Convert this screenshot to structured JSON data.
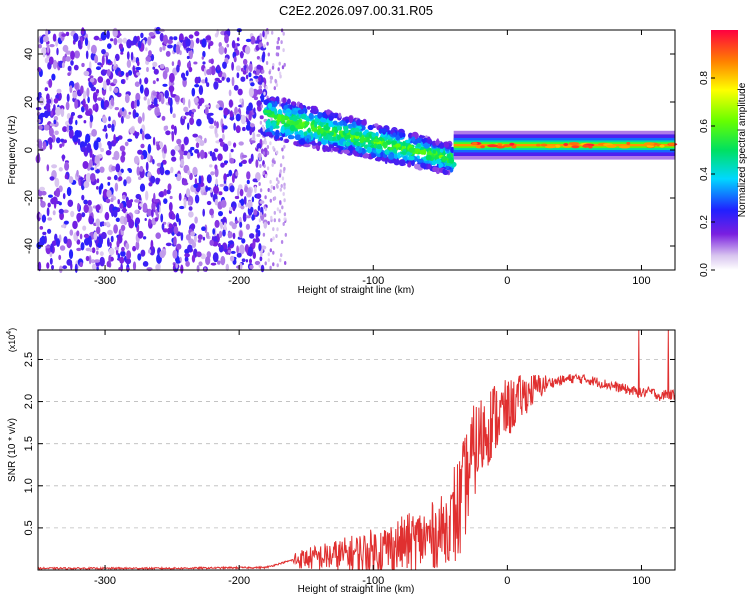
{
  "figure_title": "C2E2.2026.097.00.31.R05",
  "chart_data": [
    {
      "type": "heatmap",
      "title": "C2E2.2026.097.00.31.R05",
      "xlabel": "Height of straight line (km)",
      "ylabel": "Frequency (Hz)",
      "xlim": [
        -350,
        125
      ],
      "ylim": [
        -50,
        50
      ],
      "x_ticks": [
        -300,
        -200,
        -100,
        0,
        100
      ],
      "y_ticks": [
        -40,
        -20,
        0,
        20,
        40
      ],
      "colorbar": {
        "label": "Normalized spectral amplitude",
        "range": [
          0,
          1
        ],
        "ticks": [
          0.0,
          0.2,
          0.4,
          0.6,
          0.8
        ]
      },
      "regions": [
        {
          "name": "broadband noise",
          "x_range": [
            -350,
            -180
          ],
          "freq_range": [
            -50,
            50
          ],
          "amplitude": 0.2
        },
        {
          "name": "transition band",
          "x_range": [
            -180,
            -40
          ],
          "freq_center_start": 14,
          "freq_center_end": -4,
          "amplitude": 0.45
        },
        {
          "name": "stable carrier",
          "x_range": [
            -40,
            125
          ],
          "freq_center": 2,
          "amplitude": 0.85
        }
      ]
    },
    {
      "type": "line",
      "xlabel": "Height of straight line (km)",
      "ylabel": "SNR (10 * v/v)",
      "y_multiplier": "(x10",
      "y_multiplier_exp": "4",
      "xlim": [
        -350,
        125
      ],
      "ylim": [
        0,
        2.85
      ],
      "x_ticks": [
        -300,
        -200,
        -100,
        0,
        100
      ],
      "y_ticks": [
        0.5,
        1.0,
        1.5,
        2.0,
        2.5
      ],
      "color": "#e03030",
      "series": [
        {
          "name": "SNR",
          "x": [
            -350,
            -250,
            -180,
            -160,
            -140,
            -120,
            -100,
            -80,
            -60,
            -50,
            -40,
            -35,
            -30,
            -25,
            -20,
            -15,
            -10,
            -5,
            0,
            10,
            20,
            30,
            40,
            50,
            60,
            70,
            80,
            90,
            95,
            100,
            105,
            110,
            115,
            118,
            120,
            125
          ],
          "y": [
            0.02,
            0.02,
            0.03,
            0.12,
            0.15,
            0.18,
            0.22,
            0.3,
            0.38,
            0.45,
            0.6,
            0.75,
            1.1,
            1.4,
            1.55,
            1.7,
            1.8,
            1.85,
            1.9,
            2.05,
            2.15,
            2.22,
            2.25,
            2.28,
            2.26,
            2.22,
            2.18,
            2.14,
            2.12,
            2.1,
            2.12,
            2.1,
            2.05,
            2.1,
            2.08,
            2.08
          ]
        }
      ],
      "spikes": [
        {
          "x": 98,
          "low": 1.15,
          "high": 2.85
        },
        {
          "x": 120,
          "low": 1.55,
          "high": 2.85
        }
      ]
    }
  ]
}
